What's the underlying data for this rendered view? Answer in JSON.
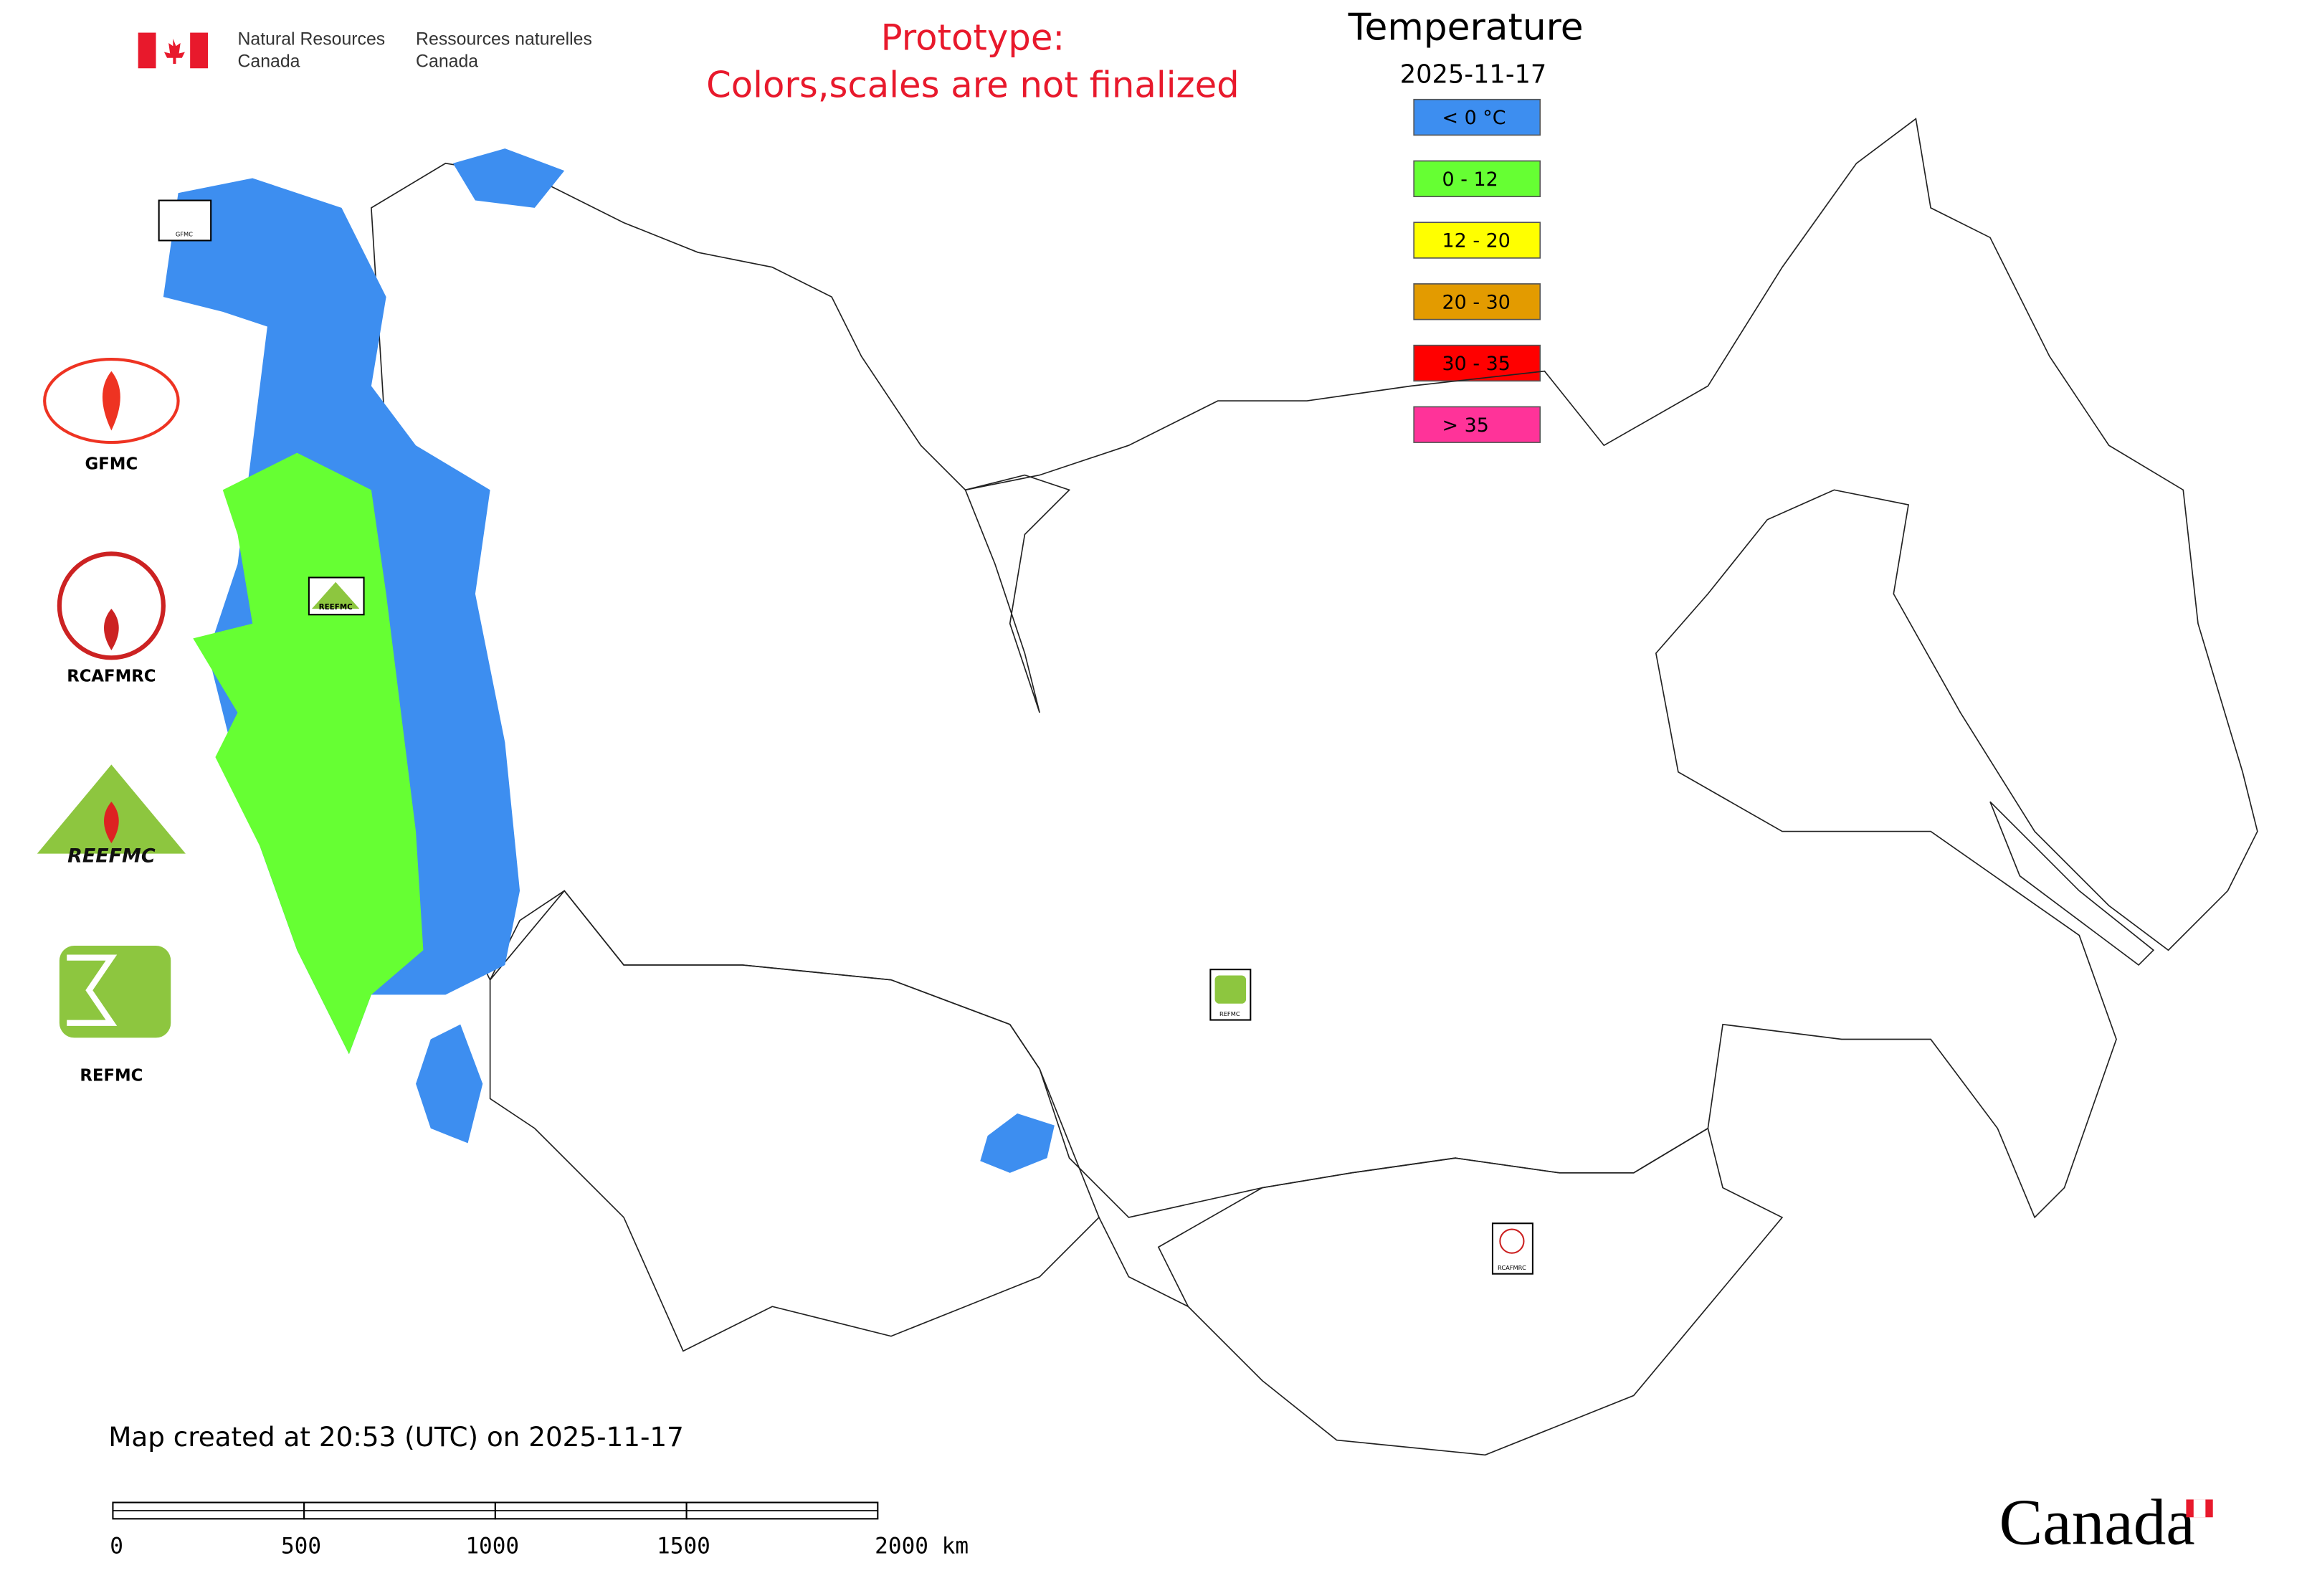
{
  "header": {
    "department_en": [
      "Natural Resources",
      "Canada"
    ],
    "department_fr": [
      "Ressources naturelles",
      "Canada"
    ],
    "notice": [
      "Prototype:",
      "Colors,scales are not finalized"
    ]
  },
  "legend": {
    "title": "Temperature",
    "date": "2025-11-17",
    "entries": [
      {
        "label": "< 0 °C",
        "color": "#3d8ef0"
      },
      {
        "label": "0 - 12",
        "color": "#66ff33"
      },
      {
        "label": "12 - 20",
        "color": "#ffff00"
      },
      {
        "label": "20 - 30",
        "color": "#e39b00"
      },
      {
        "label": "30 - 35",
        "color": "#ff0000"
      },
      {
        "label": "> 35",
        "color": "#ff3399"
      }
    ]
  },
  "side_logos": [
    "GFMC",
    "RCAFMRC",
    "REEFMC",
    "REFMC"
  ],
  "map_markers": [
    "GFMC",
    "REEFMC",
    "REFMC",
    "RCAFMRC"
  ],
  "footer": {
    "created": "Map created at 20:53 (UTC) on 2025-11-17",
    "scale_labels": [
      "0",
      "500",
      "1000",
      "1500",
      "2000 km"
    ],
    "wordmark": "Canada"
  }
}
